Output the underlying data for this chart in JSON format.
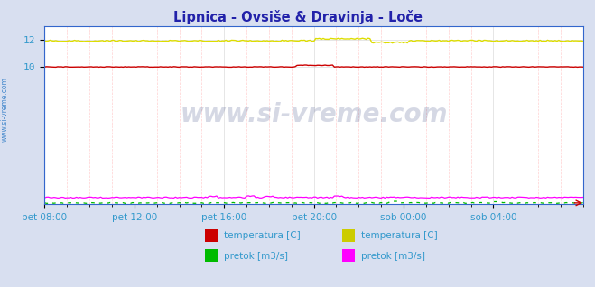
{
  "title": "Lipnica - Ovsiše & Dravinja - Loče",
  "title_color": "#2222aa",
  "bg_color": "#d8dff0",
  "plot_bg_color": "#ffffff",
  "xlim": [
    0,
    288
  ],
  "ylim": [
    0,
    13
  ],
  "yticks": [
    10,
    12
  ],
  "xtick_labels": [
    "pet 08:00",
    "pet 12:00",
    "pet 16:00",
    "pet 20:00",
    "sob 00:00",
    "sob 04:00"
  ],
  "xtick_positions": [
    0,
    48,
    96,
    144,
    192,
    240
  ],
  "tick_color": "#3399cc",
  "watermark": "www.si-vreme.com",
  "watermark_color": "#1a2a6e",
  "watermark_alpha": 0.18,
  "lip_temp_color": "#cc0000",
  "lip_temp_value": 10.0,
  "lip_pretok_color": "#00bb00",
  "lip_pretok_value": 0.06,
  "dra_temp_color": "#dddd00",
  "dra_temp_value": 11.9,
  "dra_pretok_color": "#ff00ff",
  "dra_pretok_value": 0.45,
  "border_color": "#3366cc",
  "left_label": "www.si-vreme.com",
  "left_label_color": "#4488cc",
  "legend_items_group1": [
    {
      "label": "temperatura [C]",
      "color": "#cc0000"
    },
    {
      "label": "pretok [m3/s]",
      "color": "#00bb00"
    }
  ],
  "legend_items_group2": [
    {
      "label": "temperatura [C]",
      "color": "#cccc00"
    },
    {
      "label": "pretok [m3/s]",
      "color": "#ff00ff"
    }
  ],
  "legend_text_color": "#3399cc",
  "minor_grid_color": "#ffcccc",
  "major_grid_color": "#cccccc"
}
